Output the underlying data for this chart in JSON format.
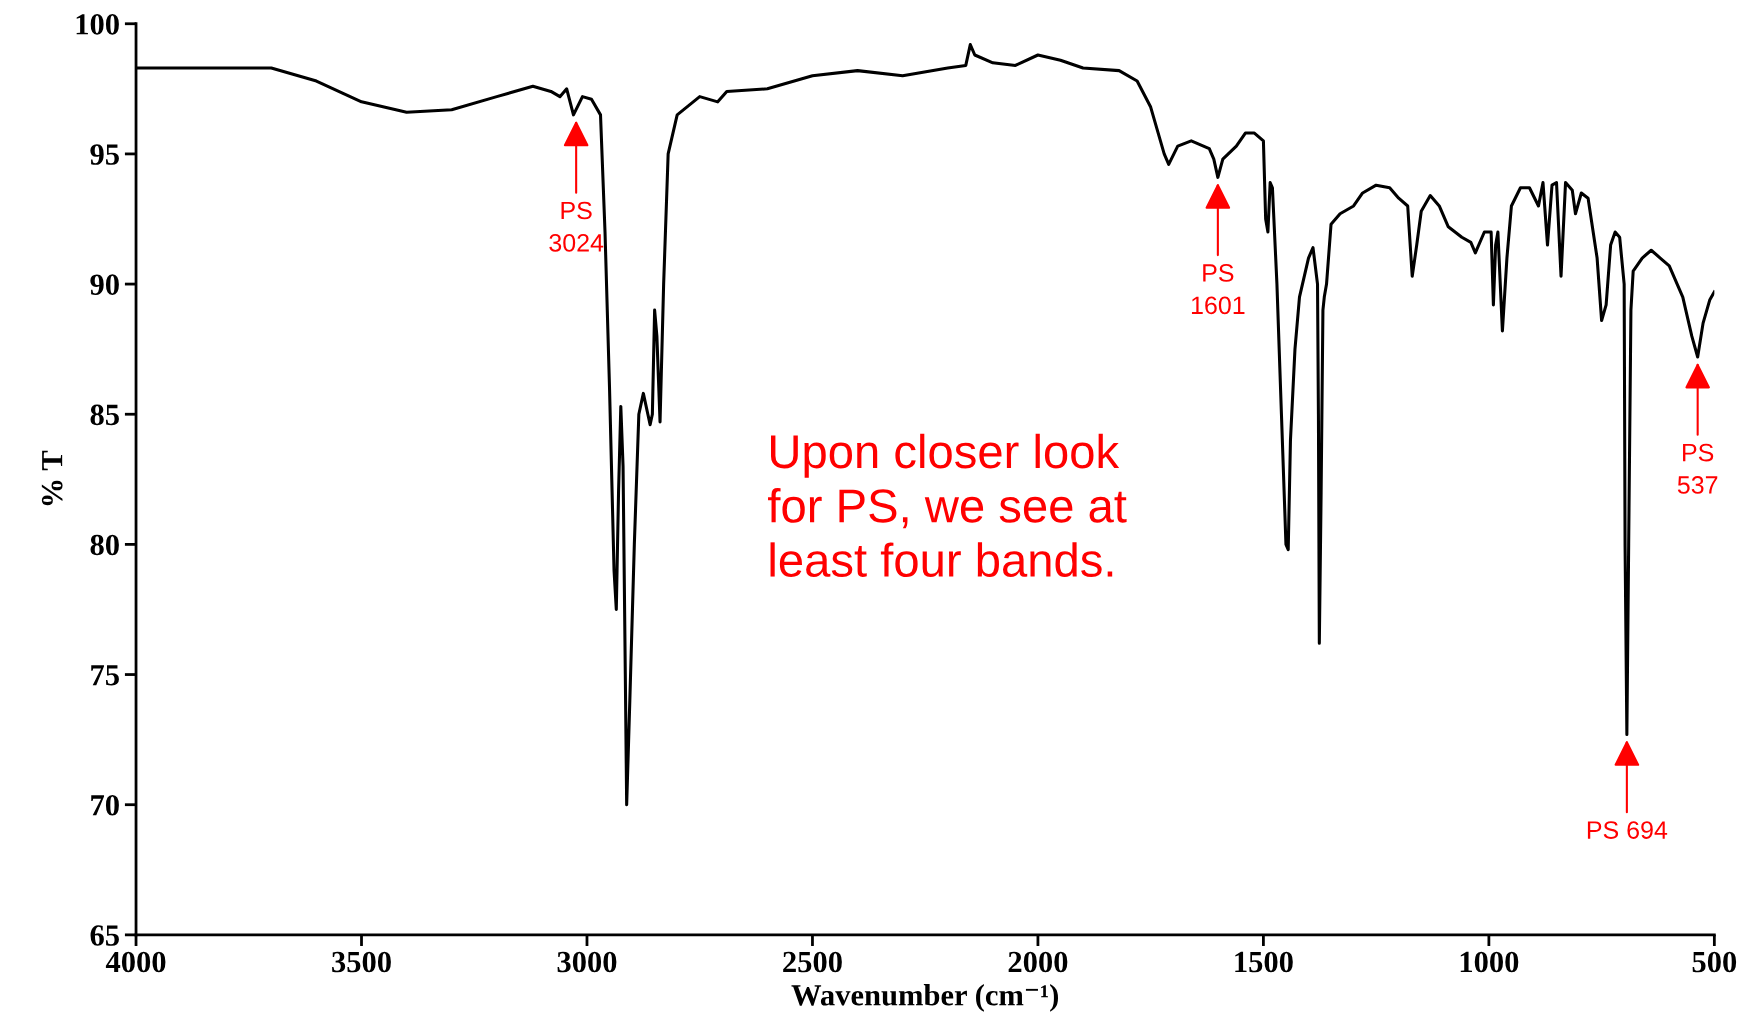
{
  "chart_data": {
    "type": "line",
    "xlabel": "Wavenumber (cm⁻¹)",
    "ylabel": "% T",
    "xlim": [
      4000,
      500
    ],
    "xticks": [
      4000,
      3500,
      3000,
      2500,
      2000,
      1500,
      1000,
      500
    ],
    "ylim": [
      65,
      100
    ],
    "yticks": [
      65,
      70,
      75,
      80,
      85,
      90,
      95,
      100
    ],
    "marker": "none",
    "line_style": "solid",
    "series": [
      {
        "color": "#000000",
        "x": [
          4000,
          3700,
          3600,
          3500,
          3400,
          3300,
          3200,
          3120,
          3080,
          3060,
          3045,
          3030,
          3010,
          2990,
          2970,
          2960,
          2950,
          2940,
          2935,
          2930,
          2925,
          2920,
          2915,
          2912,
          2905,
          2895,
          2885,
          2875,
          2865,
          2860,
          2855,
          2850,
          2845,
          2838,
          2830,
          2820,
          2800,
          2750,
          2710,
          2690,
          2600,
          2500,
          2400,
          2300,
          2200,
          2160,
          2150,
          2140,
          2100,
          2050,
          2000,
          1950,
          1900,
          1820,
          1780,
          1750,
          1720,
          1710,
          1690,
          1660,
          1620,
          1610,
          1601,
          1590,
          1560,
          1540,
          1520,
          1500,
          1495,
          1490,
          1485,
          1480,
          1470,
          1460,
          1450,
          1445,
          1440,
          1430,
          1420,
          1400,
          1390,
          1380,
          1378,
          1376,
          1372,
          1368,
          1365,
          1360,
          1350,
          1330,
          1300,
          1280,
          1250,
          1220,
          1200,
          1180,
          1170,
          1160,
          1150,
          1130,
          1110,
          1090,
          1060,
          1040,
          1030,
          1010,
          995,
          990,
          985,
          980,
          970,
          960,
          950,
          930,
          910,
          890,
          880,
          870,
          860,
          850,
          840,
          830,
          815,
          808,
          795,
          780,
          760,
          750,
          740,
          730,
          720,
          710,
          700,
          698,
          694,
          690,
          685,
          680,
          660,
          640,
          620,
          600,
          570,
          550,
          537,
          525,
          510,
          500
        ],
        "values": [
          98.3,
          98.3,
          97.8,
          97.0,
          96.6,
          96.7,
          97.2,
          97.6,
          97.4,
          97.2,
          97.5,
          96.5,
          97.2,
          97.1,
          96.5,
          92,
          86,
          79,
          77.5,
          82,
          85.3,
          83,
          75,
          70,
          74,
          80,
          85,
          85.8,
          85.0,
          84.6,
          85,
          89,
          88,
          84.7,
          90,
          95,
          96.5,
          97.2,
          97.0,
          97.4,
          97.5,
          98.0,
          98.2,
          98.0,
          98.3,
          98.4,
          99.2,
          98.8,
          98.5,
          98.4,
          98.8,
          98.6,
          98.3,
          98.2,
          97.8,
          96.8,
          95.0,
          94.6,
          95.3,
          95.5,
          95.2,
          94.8,
          94.1,
          94.8,
          95.3,
          95.8,
          95.8,
          95.5,
          92.5,
          92.0,
          93.9,
          93.7,
          90,
          85,
          80.0,
          79.8,
          84,
          87.5,
          89.5,
          91,
          91.4,
          90,
          85,
          76.2,
          82,
          89,
          89.5,
          90,
          92.3,
          92.7,
          93.0,
          93.5,
          93.8,
          93.7,
          93.3,
          93.0,
          90.3,
          91.5,
          92.8,
          93.4,
          93.0,
          92.2,
          91.8,
          91.6,
          91.2,
          92.0,
          92.0,
          89.2,
          91.5,
          92.0,
          88.2,
          91,
          93,
          93.7,
          93.7,
          93.0,
          93.9,
          91.5,
          93.8,
          93.9,
          90.3,
          93.9,
          93.6,
          92.7,
          93.5,
          93.3,
          91,
          88.6,
          89.2,
          91.5,
          92.0,
          91.8,
          90,
          80,
          72.7,
          80,
          89,
          90.5,
          91.0,
          91.3,
          91.0,
          90.7,
          89.5,
          88.0,
          87.2,
          88.5,
          89.4,
          89.7
        ]
      }
    ],
    "annotations": [
      {
        "text": "PS\n3024",
        "x": 3024,
        "y": 96.5
      },
      {
        "text": "PS\n1601",
        "x": 1601,
        "y": 94.1
      },
      {
        "text": "PS 694",
        "x": 694,
        "y": 72.7
      },
      {
        "text": "PS\n537",
        "x": 537,
        "y": 87.2
      },
      "Upon closer look\nfor PS, we see at\nleast four bands."
    ]
  }
}
